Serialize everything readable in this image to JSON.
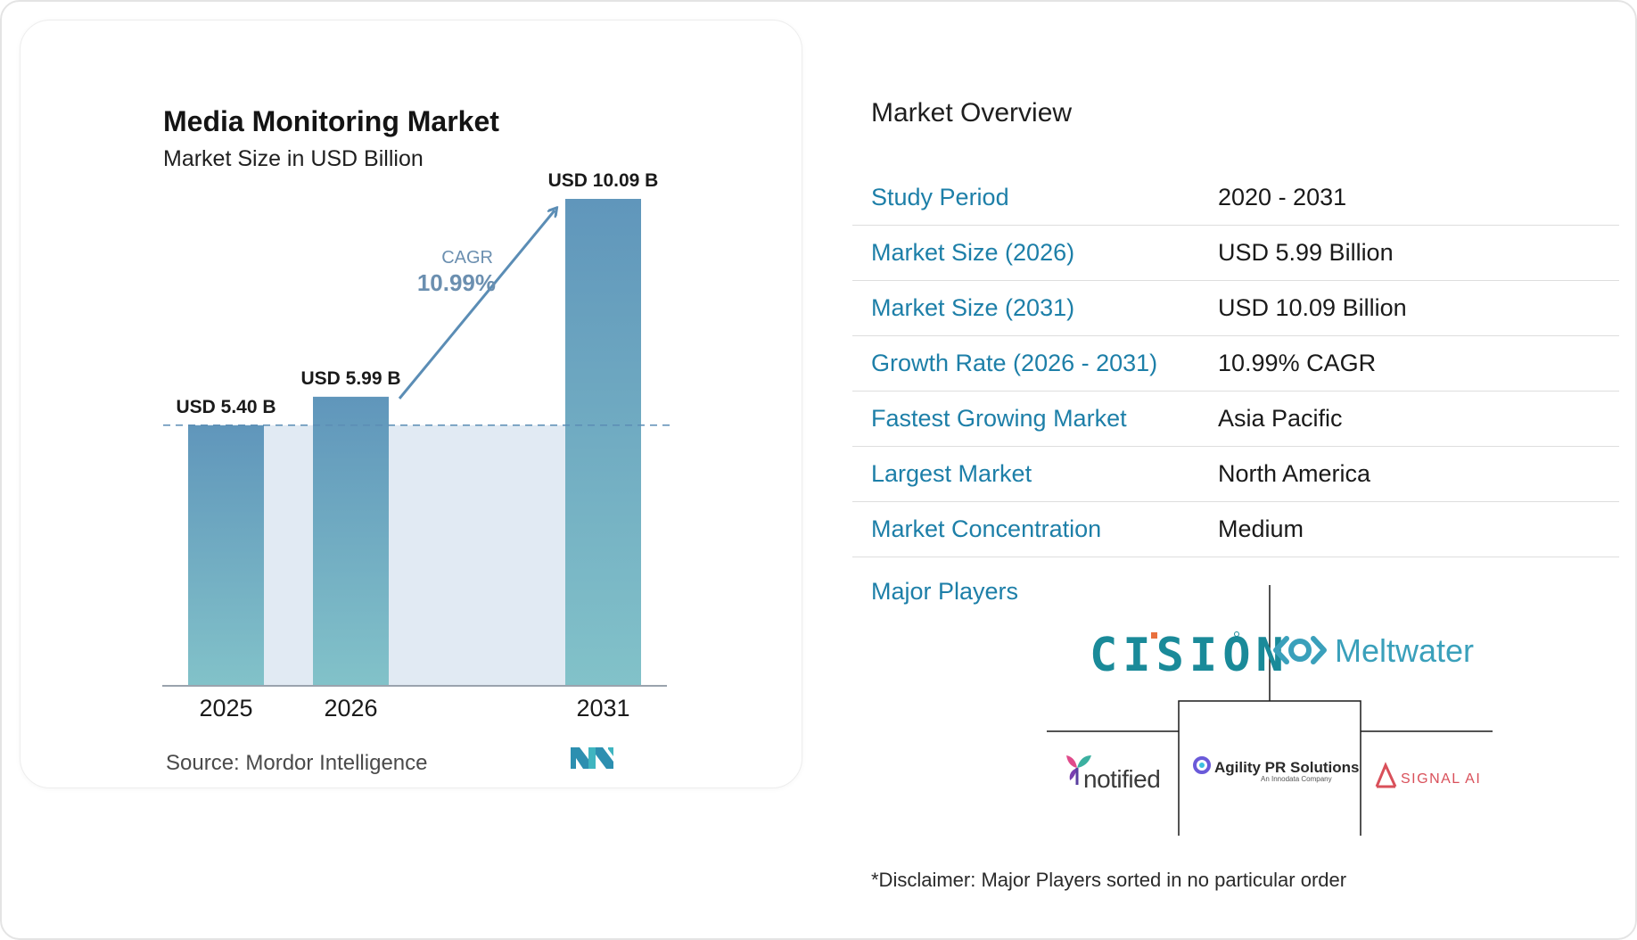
{
  "chart_data": {
    "type": "bar",
    "title": "Media Monitoring Market",
    "subtitle": "Market Size in USD Billion",
    "categories": [
      "2025",
      "2026",
      "2031"
    ],
    "values": [
      5.4,
      5.99,
      10.09
    ],
    "value_labels": [
      "USD 5.40 B",
      "USD 5.99 B",
      "USD 10.09 B"
    ],
    "ylim": [
      0,
      10.7
    ],
    "cagr_label": "CAGR",
    "cagr_value": "10.99%",
    "grid": false,
    "bar_gradient": [
      "#6096bb",
      "#82c2c9"
    ]
  },
  "source": "Source:  Mordor Intelligence",
  "overview": {
    "title": "Market Overview",
    "rows": [
      {
        "label": "Study Period",
        "value": "2020 - 2031"
      },
      {
        "label": "Market Size (2026)",
        "value": "USD 5.99 Billion"
      },
      {
        "label": "Market Size (2031)",
        "value": "USD 10.09 Billion"
      },
      {
        "label": "Growth Rate (2026 - 2031)",
        "value": "10.99% CAGR"
      },
      {
        "label": "Fastest Growing Market",
        "value": "Asia Pacific"
      },
      {
        "label": "Largest Market",
        "value": "North America"
      },
      {
        "label": "Market Concentration",
        "value": "Medium"
      }
    ],
    "players_label": "Major Players",
    "players": [
      "CISION",
      "Meltwater",
      "notified",
      "Agility PR Solutions",
      "SIGNAL AI"
    ],
    "player_notes": {
      "agility_sub": "An Innodata Company"
    },
    "disclaimer": "*Disclaimer: Major Players sorted in no particular order"
  },
  "colors": {
    "accent": "#1d7fa8",
    "arrow": "#5b8db5",
    "cision": "#1a8a99",
    "cision_accent": "#e9703e",
    "meltwater": "#3aa0bb",
    "signal": "#d9505a"
  }
}
